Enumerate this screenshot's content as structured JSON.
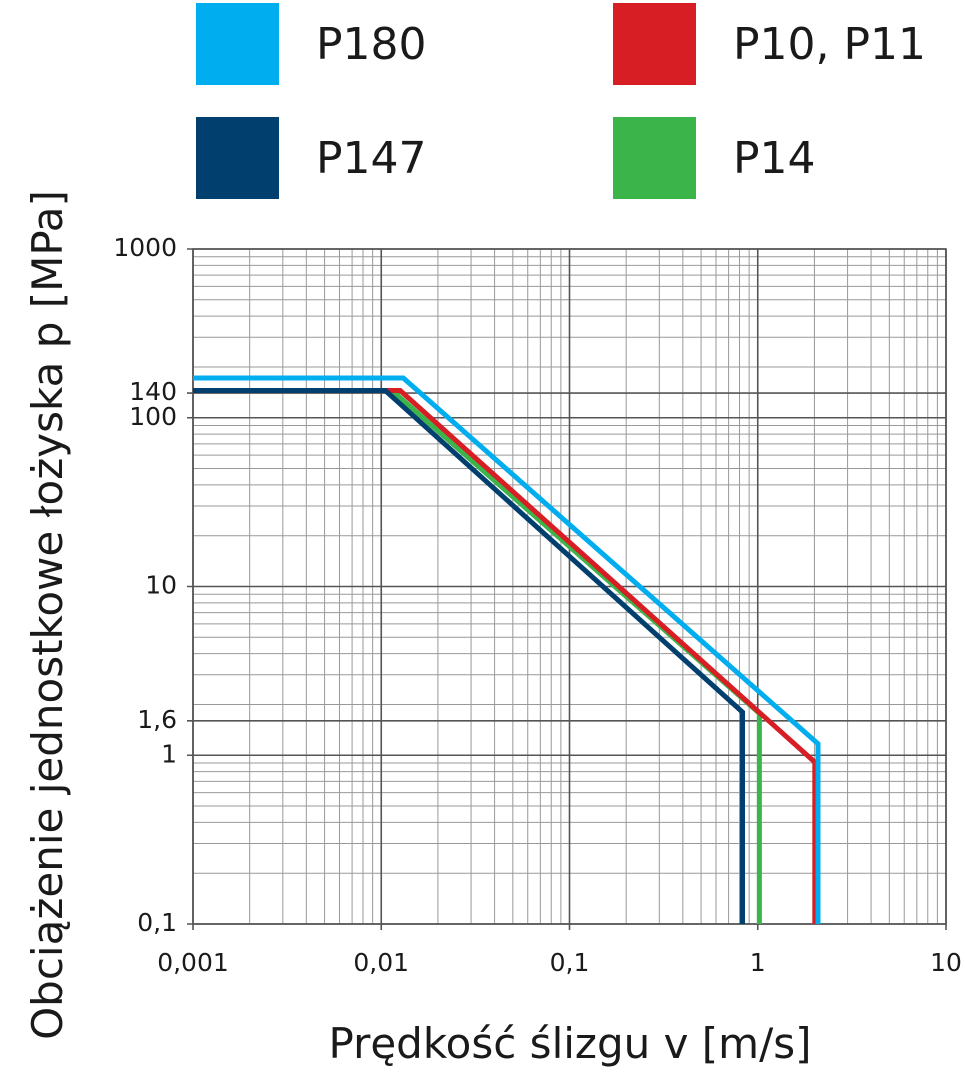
{
  "chart_data": {
    "type": "line",
    "log_x": true,
    "log_y": true,
    "grid": true,
    "x_label": "Prędkość ślizgu v [m/s]",
    "y_label": "Obciążenie jednostkowe łożyska p [MPa]",
    "xlim": [
      0.001,
      10
    ],
    "ylim": [
      0.1,
      1000
    ],
    "xticks": [
      {
        "value": 0.001,
        "label": "0,001"
      },
      {
        "value": 0.01,
        "label": "0,01"
      },
      {
        "value": 0.1,
        "label": "0,1"
      },
      1,
      10
    ],
    "yticks": [
      {
        "value": 0.1,
        "label": "0,1"
      },
      1,
      {
        "value": 1.6,
        "label": "1,6"
      },
      10,
      100,
      140,
      1000
    ],
    "series": [
      {
        "name": "P180",
        "color": "#00aeef",
        "x": [
          0.001,
          0.0131,
          2.09,
          2.09
        ],
        "values": [
          172,
          172,
          1.17,
          0.1
        ]
      },
      {
        "name": "P10, P11",
        "color": "#d81e25",
        "x": [
          0.001,
          0.0126,
          2.01,
          2.01
        ],
        "values": [
          145,
          145,
          0.91,
          0.1
        ]
      },
      {
        "name": "P147",
        "color": "#003f6e",
        "x": [
          0.001,
          0.0105,
          0.83,
          0.83
        ],
        "values": [
          145,
          145,
          1.8,
          0.1
        ]
      },
      {
        "name": "P14",
        "color": "#3bb54a",
        "x": [
          0.001,
          0.0114,
          1.02,
          1.02
        ],
        "values": [
          145,
          145,
          1.77,
          0.1
        ]
      }
    ]
  }
}
